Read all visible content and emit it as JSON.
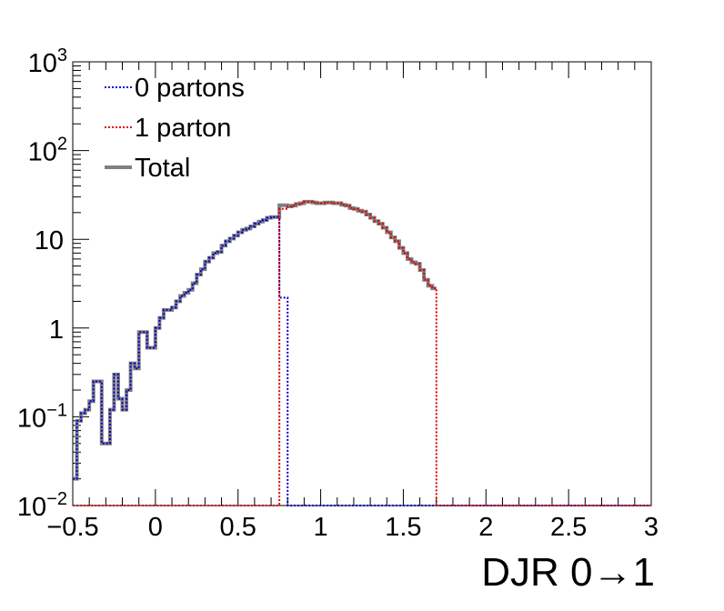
{
  "chart_data": {
    "type": "step",
    "xlabel": "DJR 0→1",
    "ylabel": "",
    "title": "",
    "xlim": [
      -0.5,
      3
    ],
    "ylim": [
      0.01,
      1000
    ],
    "yscale": "log",
    "x_ticks": [
      "−0.5",
      "0",
      "0.5",
      "1",
      "1.5",
      "2",
      "2.5",
      "3"
    ],
    "x_tick_values": [
      -0.5,
      0,
      0.5,
      1,
      1.5,
      2,
      2.5,
      3
    ],
    "y_ticks": [
      {
        "value": 0.01,
        "base": "10",
        "exp": "−2"
      },
      {
        "value": 0.1,
        "base": "10",
        "exp": "−1"
      },
      {
        "value": 1,
        "base": "1",
        "exp": ""
      },
      {
        "value": 10,
        "base": "10",
        "exp": ""
      },
      {
        "value": 100,
        "base": "10",
        "exp": "2"
      },
      {
        "value": 1000,
        "base": "10",
        "exp": "3"
      }
    ],
    "legend_position": "top-left",
    "legend": [
      "0 partons",
      "1 parton",
      "Total"
    ],
    "bin_start": -0.5,
    "bin_width": 0.025,
    "series": [
      {
        "name": "0 partons",
        "color": "#0000cc",
        "style": "dotted",
        "values": [
          0.02,
          0.09,
          0.11,
          0.12,
          0.15,
          0.25,
          0.25,
          0.05,
          0.05,
          0.12,
          0.3,
          0.16,
          0.12,
          0.2,
          0.4,
          0.35,
          0.9,
          0.9,
          0.6,
          0.6,
          1.0,
          1.3,
          1.6,
          1.6,
          1.7,
          2.0,
          2.3,
          2.5,
          2.7,
          3.2,
          4.0,
          4.6,
          5.6,
          6.2,
          7.0,
          7.2,
          8.5,
          9.5,
          10.2,
          11.0,
          12.0,
          12.8,
          13.2,
          14.0,
          15.0,
          15.8,
          16.5,
          17.5,
          17.8,
          17.8,
          2.2,
          2.2,
          0.01,
          0.01,
          0.01,
          0.01,
          0.01,
          0.01,
          0.01,
          0.01,
          0.01,
          0.01,
          0.01,
          0.01,
          0.01,
          0.01,
          0.01,
          0.01,
          0.01,
          0.01,
          0.01,
          0.01,
          0.01,
          0.01,
          0.01,
          0.01,
          0.01,
          0.01,
          0.01,
          0.01,
          0.01,
          0.01,
          0.01,
          0.01,
          0.01,
          0.01,
          0.01,
          0.01,
          0.01,
          0.01,
          0.01,
          0.01,
          0.01,
          0.01,
          0.01,
          0.01,
          0.01,
          0.01,
          0.01,
          0.01,
          0.01,
          0.01,
          0.01,
          0.01,
          0.01,
          0.01,
          0.01,
          0.01,
          0.01,
          0.01,
          0.01,
          0.01,
          0.01,
          0.01,
          0.01,
          0.01,
          0.01,
          0.01,
          0.01,
          0.01,
          0.01,
          0.01,
          0.01,
          0.01,
          0.01,
          0.01,
          0.01,
          0.01,
          0.01,
          0.01,
          0.01,
          0.01,
          0.01,
          0.01,
          0.01,
          0.01,
          0.01,
          0.01,
          0.01,
          0.01
        ]
      },
      {
        "name": "1 parton",
        "color": "#dd0000",
        "style": "dotted",
        "values": [
          0.01,
          0.01,
          0.01,
          0.01,
          0.01,
          0.01,
          0.01,
          0.01,
          0.01,
          0.01,
          0.01,
          0.01,
          0.01,
          0.01,
          0.01,
          0.01,
          0.01,
          0.01,
          0.01,
          0.01,
          0.01,
          0.01,
          0.01,
          0.01,
          0.01,
          0.01,
          0.01,
          0.01,
          0.01,
          0.01,
          0.01,
          0.01,
          0.01,
          0.01,
          0.01,
          0.01,
          0.01,
          0.01,
          0.01,
          0.01,
          0.01,
          0.01,
          0.01,
          0.01,
          0.01,
          0.01,
          0.01,
          0.01,
          0.01,
          0.01,
          22.0,
          22.0,
          23.5,
          24.0,
          25.0,
          25.5,
          26.5,
          26.5,
          26.0,
          25.5,
          25.5,
          26.0,
          26.0,
          25.5,
          25.5,
          24.5,
          24.0,
          22.5,
          22.0,
          21.0,
          20.5,
          19.0,
          17.5,
          16.0,
          15.0,
          13.5,
          12.0,
          10.5,
          9.5,
          8.0,
          7.0,
          6.0,
          5.5,
          5.3,
          4.5,
          3.5,
          3.0,
          2.8,
          0.01,
          0.01,
          0.01,
          0.01,
          0.01,
          0.01,
          0.01,
          0.01,
          0.01,
          0.01,
          0.01,
          0.01,
          0.01,
          0.01,
          0.01,
          0.01,
          0.01,
          0.01,
          0.01,
          0.01,
          0.01,
          0.01,
          0.01,
          0.01,
          0.01,
          0.01,
          0.01,
          0.01,
          0.01,
          0.01,
          0.01,
          0.01,
          0.01,
          0.01,
          0.01,
          0.01,
          0.01,
          0.01,
          0.01,
          0.01,
          0.01,
          0.01,
          0.01,
          0.01,
          0.01,
          0.01,
          0.01,
          0.01,
          0.01,
          0.01,
          0.01,
          0.01
        ]
      },
      {
        "name": "Total",
        "color": "#808080",
        "style": "solid",
        "values": [
          0.02,
          0.09,
          0.11,
          0.12,
          0.15,
          0.25,
          0.25,
          0.05,
          0.05,
          0.12,
          0.3,
          0.16,
          0.12,
          0.2,
          0.4,
          0.35,
          0.9,
          0.9,
          0.6,
          0.6,
          1.0,
          1.3,
          1.6,
          1.6,
          1.7,
          2.0,
          2.3,
          2.5,
          2.7,
          3.2,
          4.0,
          4.6,
          5.6,
          6.2,
          7.0,
          7.2,
          8.5,
          9.5,
          10.2,
          11.0,
          12.0,
          12.8,
          13.2,
          14.0,
          15.0,
          15.8,
          16.5,
          17.5,
          17.8,
          17.8,
          24.2,
          24.2,
          23.5,
          24.0,
          25.0,
          25.5,
          26.5,
          26.5,
          26.0,
          25.5,
          25.5,
          26.0,
          26.0,
          25.5,
          25.5,
          24.5,
          24.0,
          22.5,
          22.0,
          21.0,
          20.5,
          19.0,
          17.5,
          16.0,
          15.0,
          13.5,
          12.0,
          10.5,
          9.5,
          8.0,
          7.0,
          6.0,
          5.5,
          5.3,
          4.5,
          3.5,
          3.0,
          2.8
        ]
      }
    ]
  }
}
